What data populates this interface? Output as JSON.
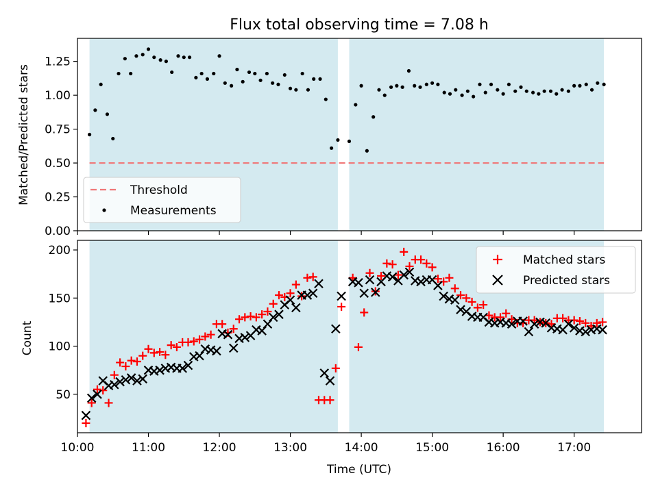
{
  "chart_data": [
    {
      "type": "scatter",
      "title": "Flux total observing time = 7.08 h",
      "xlabel": "",
      "ylabel": "Matched/Predicted stars",
      "xlim": [
        10.0,
        17.95
      ],
      "ylim": [
        0,
        1.42
      ],
      "yticks": [
        0.0,
        0.25,
        0.5,
        0.75,
        1.0,
        1.25
      ],
      "ytick_labels": [
        "0.00",
        "0.25",
        "0.50",
        "0.75",
        "1.00",
        "1.25"
      ],
      "shaded_intervals_hours": [
        [
          10.17,
          13.67
        ],
        [
          13.83,
          17.42
        ]
      ],
      "threshold": {
        "name": "Threshold",
        "value": 0.5,
        "color": "#f07878"
      },
      "legend": {
        "position": "lower-left",
        "entries": [
          "Threshold",
          "Measurements"
        ]
      },
      "series": [
        {
          "name": "Measurements",
          "color": "#000000",
          "x": [
            10.17,
            10.25,
            10.33,
            10.42,
            10.5,
            10.58,
            10.67,
            10.75,
            10.83,
            10.92,
            11.0,
            11.08,
            11.17,
            11.25,
            11.33,
            11.42,
            11.5,
            11.58,
            11.67,
            11.75,
            11.83,
            11.92,
            12.0,
            12.08,
            12.17,
            12.25,
            12.33,
            12.42,
            12.5,
            12.58,
            12.67,
            12.75,
            12.83,
            12.92,
            13.0,
            13.08,
            13.17,
            13.25,
            13.33,
            13.42,
            13.5,
            13.58,
            13.67,
            13.83,
            13.92,
            14.0,
            14.08,
            14.17,
            14.25,
            14.33,
            14.42,
            14.5,
            14.58,
            14.67,
            14.75,
            14.83,
            14.92,
            15.0,
            15.08,
            15.17,
            15.25,
            15.33,
            15.42,
            15.5,
            15.58,
            15.67,
            15.75,
            15.83,
            15.92,
            16.0,
            16.08,
            16.17,
            16.25,
            16.33,
            16.42,
            16.5,
            16.58,
            16.67,
            16.75,
            16.83,
            16.92,
            17.0,
            17.08,
            17.17,
            17.25,
            17.33,
            17.42
          ],
          "y": [
            0.71,
            0.89,
            1.08,
            0.86,
            0.68,
            1.16,
            1.27,
            1.16,
            1.29,
            1.3,
            1.34,
            1.28,
            1.26,
            1.25,
            1.17,
            1.29,
            1.28,
            1.28,
            1.13,
            1.16,
            1.12,
            1.16,
            1.29,
            1.09,
            1.07,
            1.19,
            1.1,
            1.17,
            1.16,
            1.11,
            1.16,
            1.09,
            1.08,
            1.15,
            1.05,
            1.04,
            1.16,
            1.04,
            1.12,
            1.12,
            0.97,
            0.61,
            0.67,
            0.66,
            0.93,
            1.07,
            0.59,
            0.84,
            1.04,
            1.0,
            1.06,
            1.07,
            1.06,
            1.18,
            1.07,
            1.06,
            1.08,
            1.09,
            1.08,
            1.02,
            1.01,
            1.04,
            1.0,
            1.03,
            0.99,
            1.08,
            1.02,
            1.08,
            1.04,
            1.01,
            1.08,
            1.03,
            1.06,
            1.03,
            1.02,
            1.01,
            1.03,
            1.03,
            1.01,
            1.04,
            1.03,
            1.07,
            1.07,
            1.08,
            1.04,
            1.09,
            1.08
          ]
        }
      ]
    },
    {
      "type": "scatter",
      "title": "",
      "xlabel": "Time (UTC)",
      "ylabel": "Count",
      "xlim": [
        10.0,
        17.95
      ],
      "ylim": [
        10,
        210
      ],
      "yticks": [
        50,
        100,
        150,
        200
      ],
      "ytick_labels": [
        "50",
        "100",
        "150",
        "200"
      ],
      "xticks": [
        10,
        11,
        12,
        13,
        14,
        15,
        16,
        17
      ],
      "xtick_labels": [
        "10:00",
        "11:00",
        "12:00",
        "13:00",
        "14:00",
        "15:00",
        "16:00",
        "17:00"
      ],
      "shaded_intervals_hours": [
        [
          10.17,
          13.67
        ],
        [
          13.83,
          17.42
        ]
      ],
      "legend": {
        "position": "top-right",
        "entries": [
          "Matched stars",
          "Predicted stars"
        ]
      },
      "series": [
        {
          "name": "Matched stars",
          "color": "#ff0000",
          "x": [
            10.12,
            10.2,
            10.28,
            10.36,
            10.44,
            10.52,
            10.6,
            10.68,
            10.76,
            10.84,
            10.92,
            11.0,
            11.08,
            11.16,
            11.24,
            11.32,
            11.4,
            11.48,
            11.56,
            11.64,
            11.72,
            11.8,
            11.88,
            11.96,
            12.04,
            12.12,
            12.2,
            12.28,
            12.36,
            12.44,
            12.52,
            12.6,
            12.68,
            12.76,
            12.84,
            12.92,
            13.0,
            13.08,
            13.16,
            13.24,
            13.32,
            13.4,
            13.48,
            13.56,
            13.64,
            13.72,
            13.88,
            13.96,
            14.04,
            14.12,
            14.2,
            14.28,
            14.36,
            14.44,
            14.52,
            14.6,
            14.68,
            14.76,
            14.84,
            14.92,
            15.0,
            15.08,
            15.16,
            15.24,
            15.32,
            15.4,
            15.48,
            15.56,
            15.64,
            15.72,
            15.8,
            15.88,
            15.96,
            16.04,
            16.12,
            16.2,
            16.28,
            16.36,
            16.44,
            16.52,
            16.6,
            16.68,
            16.76,
            16.84,
            16.92,
            17.0,
            17.08,
            17.16,
            17.24,
            17.32,
            17.4
          ],
          "y": [
            20,
            41,
            55,
            54,
            41,
            70,
            83,
            79,
            85,
            84,
            90,
            97,
            93,
            94,
            91,
            101,
            99,
            104,
            104,
            105,
            107,
            110,
            112,
            123,
            123,
            114,
            118,
            128,
            130,
            131,
            130,
            133,
            136,
            144,
            153,
            151,
            155,
            164,
            152,
            171,
            172,
            44,
            44,
            44,
            77,
            141,
            171,
            99,
            135,
            176,
            157,
            173,
            186,
            185,
            174,
            198,
            183,
            190,
            190,
            186,
            182,
            170,
            167,
            171,
            160,
            153,
            150,
            146,
            140,
            143,
            132,
            130,
            130,
            134,
            128,
            124,
            124,
            127,
            127,
            125,
            124,
            123,
            129,
            129,
            127,
            127,
            126,
            124,
            121,
            124,
            125
          ]
        },
        {
          "name": "Predicted stars",
          "color": "#000000",
          "x": [
            10.12,
            10.2,
            10.28,
            10.36,
            10.44,
            10.52,
            10.6,
            10.68,
            10.76,
            10.84,
            10.92,
            11.0,
            11.08,
            11.16,
            11.24,
            11.32,
            11.4,
            11.48,
            11.56,
            11.64,
            11.72,
            11.8,
            11.88,
            11.96,
            12.04,
            12.12,
            12.2,
            12.28,
            12.36,
            12.44,
            12.52,
            12.6,
            12.68,
            12.76,
            12.84,
            12.92,
            13.0,
            13.08,
            13.16,
            13.24,
            13.32,
            13.4,
            13.48,
            13.56,
            13.64,
            13.72,
            13.88,
            13.96,
            14.04,
            14.12,
            14.2,
            14.28,
            14.36,
            14.44,
            14.52,
            14.6,
            14.68,
            14.76,
            14.84,
            14.92,
            15.0,
            15.08,
            15.16,
            15.24,
            15.32,
            15.4,
            15.48,
            15.56,
            15.64,
            15.72,
            15.8,
            15.88,
            15.96,
            16.04,
            16.12,
            16.2,
            16.28,
            16.36,
            16.44,
            16.52,
            16.6,
            16.68,
            16.76,
            16.84,
            16.92,
            17.0,
            17.08,
            17.16,
            17.24,
            17.32,
            17.4
          ],
          "y": [
            28,
            46,
            50,
            64,
            59,
            60,
            63,
            65,
            67,
            64,
            66,
            75,
            74,
            75,
            77,
            78,
            77,
            77,
            80,
            89,
            90,
            97,
            96,
            95,
            113,
            112,
            98,
            108,
            109,
            111,
            117,
            116,
            123,
            130,
            133,
            143,
            148,
            140,
            153,
            153,
            155,
            165,
            72,
            64,
            118,
            152,
            167,
            166,
            155,
            169,
            156,
            167,
            173,
            172,
            168,
            174,
            177,
            168,
            167,
            169,
            169,
            163,
            152,
            149,
            148,
            138,
            136,
            131,
            130,
            130,
            125,
            124,
            125,
            124,
            123,
            126,
            126,
            115,
            123,
            125,
            124,
            119,
            118,
            117,
            123,
            119,
            116,
            115,
            117,
            118,
            117
          ]
        }
      ]
    }
  ]
}
